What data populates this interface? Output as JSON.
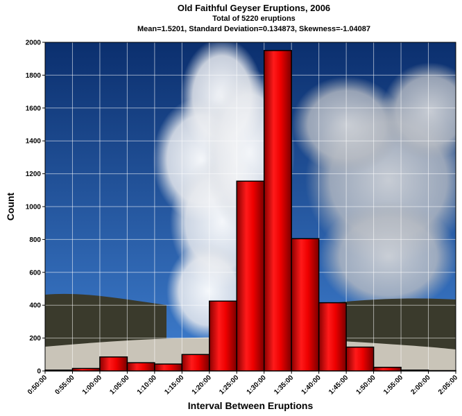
{
  "chart_data": {
    "type": "bar",
    "title": "Old Faithful Geyser Eruptions, 2006",
    "subtitle_1": "Total of 5220 eruptions",
    "subtitle_2": "Mean=1.5201, Standard Deviation=0.134873, Skewness=-1.04087",
    "xlabel": "Interval Between Eruptions",
    "ylabel": "Count",
    "ylim": [
      0,
      2000
    ],
    "y_ticks": [
      "0",
      "200",
      "400",
      "600",
      "800",
      "1000",
      "1200",
      "1400",
      "1600",
      "1800",
      "2000"
    ],
    "x_ticks": [
      "0:50:00",
      "0:55:00",
      "1:00:00",
      "1:05:00",
      "1:10:00",
      "1:15:00",
      "1:20:00",
      "1:25:00",
      "1:30:00",
      "1:35:00",
      "1:40:00",
      "1:45:00",
      "1:50:00",
      "1:55:00",
      "2:00:00",
      "2:05:00"
    ],
    "bins": [
      {
        "start": "0:50:00",
        "end": "0:55:00",
        "value": 5
      },
      {
        "start": "0:55:00",
        "end": "1:00:00",
        "value": 15
      },
      {
        "start": "1:00:00",
        "end": "1:05:00",
        "value": 85
      },
      {
        "start": "1:05:00",
        "end": "1:10:00",
        "value": 50
      },
      {
        "start": "1:10:00",
        "end": "1:15:00",
        "value": 42
      },
      {
        "start": "1:15:00",
        "end": "1:20:00",
        "value": 100
      },
      {
        "start": "1:20:00",
        "end": "1:25:00",
        "value": 425
      },
      {
        "start": "1:25:00",
        "end": "1:30:00",
        "value": 1155
      },
      {
        "start": "1:30:00",
        "end": "1:35:00",
        "value": 1950
      },
      {
        "start": "1:35:00",
        "end": "1:40:00",
        "value": 805
      },
      {
        "start": "1:40:00",
        "end": "1:45:00",
        "value": 415
      },
      {
        "start": "1:45:00",
        "end": "1:50:00",
        "value": 145
      },
      {
        "start": "1:50:00",
        "end": "1:55:00",
        "value": 22
      },
      {
        "start": "1:55:00",
        "end": "2:00:00",
        "value": 5
      },
      {
        "start": "2:00:00",
        "end": "2:05:00",
        "value": 2
      }
    ],
    "grid": true,
    "bar_color": "#ee0000",
    "legend": "none"
  },
  "background": {
    "sky_top": "#0b2f6e",
    "sky_bottom": "#3f7fd0",
    "steam": "#eef0f2",
    "smoke": "#c8ccd2",
    "hills": "#3a3a2c",
    "ground": "#c9c4b8"
  }
}
